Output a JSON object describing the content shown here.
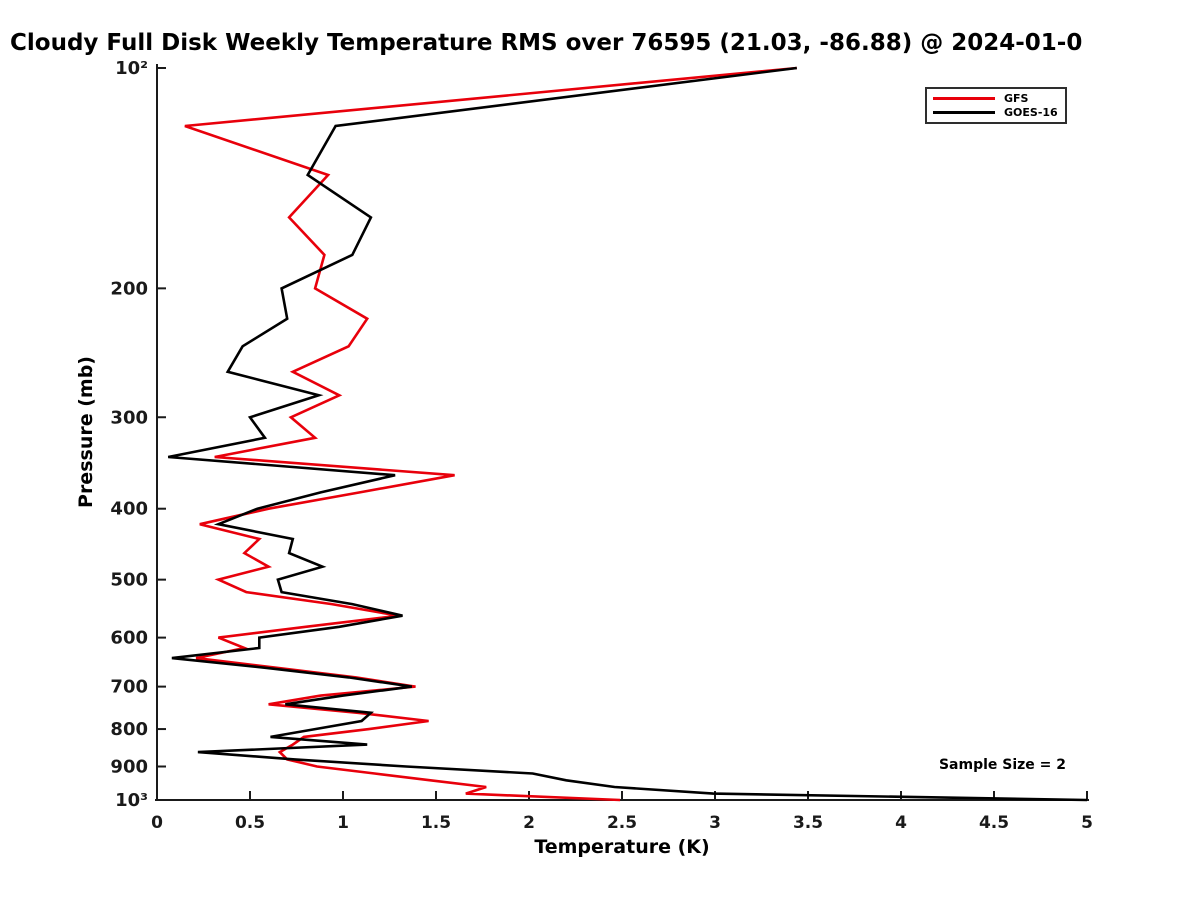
{
  "chart_data": {
    "type": "line",
    "title": "Cloudy Full Disk Weekly Temperature RMS over 76595 (21.03, -86.88) @ 2024-01-0",
    "xlabel": "Temperature (K)",
    "ylabel": "Pressure (mb)",
    "x_range": [
      0,
      5
    ],
    "x_ticks": [
      0,
      0.5,
      1,
      1.5,
      2,
      2.5,
      3,
      3.5,
      4,
      4.5,
      5
    ],
    "x_tick_labels": [
      "0",
      "0.5",
      "1",
      "1.5",
      "2",
      "2.5",
      "3",
      "3.5",
      "4",
      "4.5",
      "5"
    ],
    "y_scale": "log",
    "y_range": [
      100,
      1000
    ],
    "y_ticks": [
      100,
      200,
      300,
      400,
      500,
      600,
      700,
      800,
      900,
      1000
    ],
    "y_tick_labels": [
      "10²",
      "200",
      "300",
      "400",
      "500",
      "600",
      "700",
      "800",
      "900",
      "10³"
    ],
    "grid": false,
    "legend_position": "upper right",
    "axis_color": "#1a1a1a",
    "pressure_levels": [
      100,
      120,
      140,
      160,
      180,
      200,
      220,
      240,
      260,
      280,
      300,
      320,
      340,
      360,
      380,
      400,
      420,
      440,
      460,
      480,
      500,
      520,
      540,
      560,
      580,
      600,
      620,
      640,
      660,
      680,
      700,
      720,
      740,
      760,
      780,
      800,
      820,
      840,
      860,
      880,
      900,
      920,
      940,
      960,
      980,
      1000
    ],
    "series": [
      {
        "name": "GFS",
        "color": "#e8000b",
        "values": [
          3.44,
          0.15,
          0.92,
          0.71,
          0.9,
          0.85,
          1.13,
          1.03,
          0.73,
          0.98,
          0.72,
          0.85,
          0.31,
          1.6,
          1.09,
          0.6,
          0.23,
          0.55,
          0.47,
          0.6,
          0.33,
          0.48,
          0.94,
          1.3,
          0.8,
          0.33,
          0.47,
          0.21,
          0.65,
          1.07,
          1.39,
          0.88,
          0.6,
          1.08,
          1.46,
          1.14,
          0.79,
          0.73,
          0.66,
          0.7,
          0.86,
          1.17,
          1.47,
          1.77,
          1.66,
          2.49
        ]
      },
      {
        "name": "GOES-16",
        "color": "#000000",
        "values": [
          3.44,
          0.96,
          0.81,
          1.15,
          1.05,
          0.67,
          0.7,
          0.46,
          0.38,
          0.87,
          0.5,
          0.58,
          0.06,
          1.28,
          0.88,
          0.54,
          0.33,
          0.73,
          0.71,
          0.89,
          0.65,
          0.67,
          1.05,
          1.32,
          0.98,
          0.55,
          0.55,
          0.08,
          0.59,
          1.03,
          1.37,
          1.0,
          0.69,
          1.15,
          1.1,
          0.85,
          0.61,
          1.13,
          0.22,
          0.74,
          1.34,
          2.02,
          2.2,
          2.46,
          2.99,
          5.0
        ]
      }
    ],
    "annotation": "Sample Size = 2"
  }
}
